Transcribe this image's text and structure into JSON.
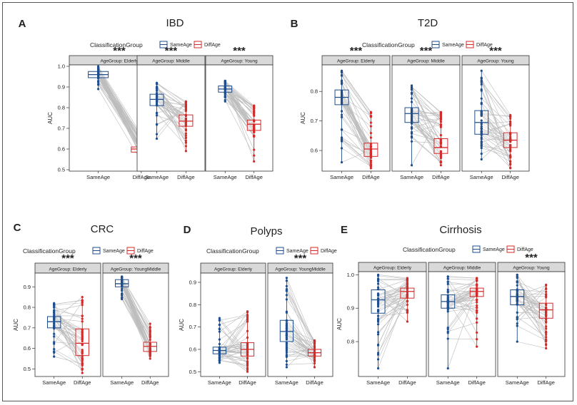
{
  "colors": {
    "same": "#1f4e8c",
    "diff": "#d42a2a",
    "line": "#bdbdbd",
    "strip": "#d9d9d9"
  },
  "legend": {
    "title": "ClassificationGroup",
    "same_label": "SameAge",
    "diff_label": "DiffAge"
  },
  "chart_data": [
    {
      "letter": "A",
      "title": "IBD",
      "type": "paired-box-strip",
      "ylabel": "AUC",
      "ylim": [
        0.5,
        1.0
      ],
      "yticks": [
        "0.5",
        "0.6",
        "0.7",
        "0.8",
        "0.9",
        "1.0"
      ],
      "categories": [
        "SameAge",
        "DiffAge"
      ],
      "panels": [
        {
          "strip": "AgeGroup: Elderly",
          "signif": "***",
          "same": {
            "q1": 0.945,
            "median": 0.96,
            "q3": 0.975,
            "min": 0.89,
            "max": 1.0
          },
          "diff": {
            "q1": 0.585,
            "median": 0.6,
            "q3": 0.61,
            "min": 0.54,
            "max": 0.67
          }
        },
        {
          "strip": "AgeGroup: Middle",
          "signif": "***",
          "same": {
            "q1": 0.81,
            "median": 0.84,
            "q3": 0.865,
            "min": 0.65,
            "max": 0.92
          },
          "diff": {
            "q1": 0.71,
            "median": 0.735,
            "q3": 0.765,
            "min": 0.59,
            "max": 0.83
          }
        },
        {
          "strip": "AgeGroup: Young",
          "signif": "***",
          "same": {
            "q1": 0.875,
            "median": 0.89,
            "q3": 0.905,
            "min": 0.83,
            "max": 0.93
          },
          "diff": {
            "q1": 0.69,
            "median": 0.72,
            "q3": 0.74,
            "min": 0.54,
            "max": 0.81
          }
        }
      ]
    },
    {
      "letter": "B",
      "title": "T2D",
      "type": "paired-box-strip",
      "ylabel": "AUC",
      "ylim": [
        0.535,
        0.885
      ],
      "yticks": [
        "0.6",
        "0.7",
        "0.8"
      ],
      "categories": [
        "SameAge",
        "DiffAge"
      ],
      "panels": [
        {
          "strip": "AgeGroup: Elderly",
          "signif": "***",
          "same": {
            "q1": 0.755,
            "median": 0.78,
            "q3": 0.805,
            "min": 0.56,
            "max": 0.87
          },
          "diff": {
            "q1": 0.58,
            "median": 0.605,
            "q3": 0.625,
            "min": 0.54,
            "max": 0.73
          }
        },
        {
          "strip": "AgeGroup: Middle",
          "signif": "***",
          "same": {
            "q1": 0.695,
            "median": 0.725,
            "q3": 0.745,
            "min": 0.55,
            "max": 0.82
          },
          "diff": {
            "q1": 0.59,
            "median": 0.61,
            "q3": 0.64,
            "min": 0.55,
            "max": 0.73
          }
        },
        {
          "strip": "AgeGroup: Young",
          "signif": "***",
          "same": {
            "q1": 0.655,
            "median": 0.695,
            "q3": 0.735,
            "min": 0.57,
            "max": 0.87
          },
          "diff": {
            "q1": 0.61,
            "median": 0.635,
            "q3": 0.66,
            "min": 0.54,
            "max": 0.72
          }
        }
      ]
    },
    {
      "letter": "C",
      "title": "CRC",
      "type": "paired-box-strip",
      "ylabel": "AUC",
      "ylim": [
        0.47,
        0.96
      ],
      "yticks": [
        "0.5",
        "0.6",
        "0.7",
        "0.8",
        "0.9"
      ],
      "categories": [
        "SameAge",
        "DiffAge"
      ],
      "panels": [
        {
          "strip": "AgeGroup: Elderly",
          "signif": "***",
          "same": {
            "q1": 0.7,
            "median": 0.73,
            "q3": 0.755,
            "min": 0.56,
            "max": 0.82
          },
          "diff": {
            "q1": 0.565,
            "median": 0.625,
            "q3": 0.695,
            "min": 0.48,
            "max": 0.85
          }
        },
        {
          "strip": "AgeGroup: YoungMiddle",
          "signif": "***",
          "same": {
            "q1": 0.9,
            "median": 0.915,
            "q3": 0.935,
            "min": 0.84,
            "max": 0.95
          },
          "diff": {
            "q1": 0.585,
            "median": 0.61,
            "q3": 0.63,
            "min": 0.55,
            "max": 0.72
          }
        }
      ]
    },
    {
      "letter": "D",
      "title": "Polyps",
      "type": "paired-box-strip",
      "ylabel": "AUC",
      "ylim": [
        0.485,
        0.935
      ],
      "yticks": [
        "0.5",
        "0.6",
        "0.7",
        "0.8",
        "0.9"
      ],
      "categories": [
        "SameAge",
        "DiffAge"
      ],
      "panels": [
        {
          "strip": "AgeGroup: Elderly",
          "signif": "",
          "same": {
            "q1": 0.58,
            "median": 0.595,
            "q3": 0.61,
            "min": 0.54,
            "max": 0.74
          },
          "diff": {
            "q1": 0.57,
            "median": 0.6,
            "q3": 0.63,
            "min": 0.5,
            "max": 0.77
          }
        },
        {
          "strip": "AgeGroup: YoungMiddle",
          "signif": "***",
          "same": {
            "q1": 0.635,
            "median": 0.68,
            "q3": 0.73,
            "min": 0.52,
            "max": 0.92
          },
          "diff": {
            "q1": 0.57,
            "median": 0.585,
            "q3": 0.6,
            "min": 0.52,
            "max": 0.64
          }
        }
      ]
    },
    {
      "letter": "E",
      "title": "Cirrhosis",
      "type": "paired-box-strip",
      "ylabel": "AUC",
      "ylim": [
        0.7,
        1.005
      ],
      "yticks": [
        "0.8",
        "0.9",
        "1.0"
      ],
      "categories": [
        "SameAge",
        "DiffAge"
      ],
      "panels": [
        {
          "strip": "AgeGroup: Elderly",
          "signif": "",
          "same": {
            "q1": 0.885,
            "median": 0.925,
            "q3": 0.955,
            "min": 0.72,
            "max": 1.0
          },
          "diff": {
            "q1": 0.93,
            "median": 0.95,
            "q3": 0.96,
            "min": 0.86,
            "max": 0.99
          }
        },
        {
          "strip": "AgeGroup: Middle",
          "signif": "",
          "same": {
            "q1": 0.9,
            "median": 0.92,
            "q3": 0.94,
            "min": 0.72,
            "max": 0.995
          },
          "diff": {
            "q1": 0.935,
            "median": 0.95,
            "q3": 0.96,
            "min": 0.785,
            "max": 0.99
          }
        },
        {
          "strip": "AgeGroup: Young",
          "signif": "***",
          "same": {
            "q1": 0.91,
            "median": 0.935,
            "q3": 0.955,
            "min": 0.8,
            "max": 1.0
          },
          "diff": {
            "q1": 0.87,
            "median": 0.895,
            "q3": 0.915,
            "min": 0.78,
            "max": 0.97
          }
        }
      ]
    }
  ]
}
